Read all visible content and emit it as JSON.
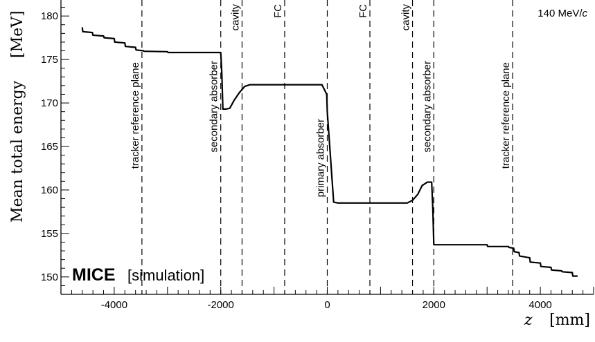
{
  "chart_data": {
    "type": "line",
    "title": "",
    "xlabel": "z",
    "xlabel_unit": "[mm]",
    "ylabel": "Mean total energy",
    "ylabel_unit": "[MeV]",
    "xlim": [
      -5000,
      5000
    ],
    "ylim": [
      148,
      182
    ],
    "x_ticks": [
      -4000,
      -2000,
      0,
      2000,
      4000
    ],
    "y_ticks": [
      150,
      155,
      160,
      165,
      170,
      175,
      180
    ],
    "grid": false,
    "series": [
      {
        "x": [
          -4600,
          -4590,
          -4410,
          -4400,
          -4200,
          -4190,
          -4000,
          -3990,
          -3800,
          -3790,
          -3600,
          -3590,
          -3450,
          -3440,
          -3000,
          -2990,
          -2000,
          -1980,
          -1960,
          -1900,
          -1830,
          -1750,
          -1650,
          -1550,
          -1450,
          -1400,
          -800,
          -200,
          -100,
          -10,
          0,
          120,
          200,
          800,
          1400,
          1500,
          1600,
          1700,
          1780,
          1880,
          1900,
          1960,
          1980,
          2000,
          2100,
          3000,
          3010,
          3400,
          3410,
          3500,
          3510,
          3600,
          3610,
          3800,
          3810,
          4000,
          4010,
          4200,
          4210,
          4400,
          4410,
          4600,
          4610,
          4700
        ],
        "y": [
          178.7,
          178.2,
          178.1,
          177.8,
          177.7,
          177.5,
          177.4,
          177.0,
          176.9,
          176.5,
          176.4,
          176.1,
          176.0,
          175.95,
          175.9,
          175.8,
          175.8,
          173.5,
          169.3,
          169.3,
          169.4,
          170.3,
          171.2,
          171.9,
          172.1,
          172.1,
          172.1,
          172.1,
          172.1,
          171.0,
          169.0,
          158.6,
          158.5,
          158.5,
          158.5,
          158.5,
          158.8,
          159.5,
          160.5,
          160.9,
          160.9,
          160.9,
          158.0,
          153.7,
          153.7,
          153.7,
          153.5,
          153.5,
          153.4,
          153.3,
          152.9,
          152.8,
          152.4,
          152.2,
          151.7,
          151.6,
          151.2,
          151.1,
          150.8,
          150.7,
          150.6,
          150.5,
          150.1,
          150.1
        ]
      }
    ],
    "vlines": [
      -3480,
      -2000,
      -1600,
      -800,
      0,
      800,
      1600,
      2000,
      3480
    ],
    "annotations": [
      {
        "text": "tracker reference plane",
        "x": -3480
      },
      {
        "text": "secondary absorber",
        "x": -2000
      },
      {
        "text": "cavity",
        "x": -1600
      },
      {
        "text": "FC",
        "x": -800
      },
      {
        "text": "primary absorber",
        "x": 0
      },
      {
        "text": "FC",
        "x": 800
      },
      {
        "text": "cavity",
        "x": 1600
      },
      {
        "text": "secondary absorber",
        "x": 2000
      },
      {
        "text": "tracker reference plane",
        "x": 3480
      }
    ],
    "momentum_label_prefix": "140 MeV/",
    "momentum_label_italic": "c",
    "experiment_label": "MICE",
    "experiment_sublabel": "[simulation]"
  }
}
